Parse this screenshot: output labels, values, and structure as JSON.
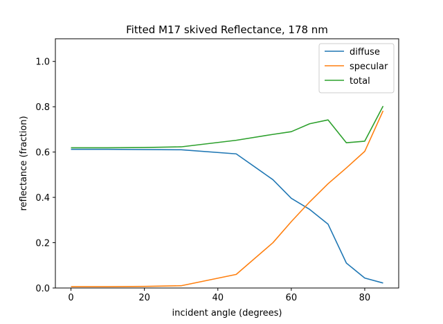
{
  "chart_data": {
    "type": "line",
    "title": "Fitted M17 skived Reflectance, 178 nm",
    "xlabel": "incident angle (degrees)",
    "ylabel": "reflectance (fraction)",
    "xlim": [
      -4.25,
      89.25
    ],
    "ylim": [
      0,
      1.1
    ],
    "xticks": [
      0,
      20,
      40,
      60,
      80
    ],
    "yticks": [
      0.0,
      0.2,
      0.4,
      0.6,
      0.8,
      1.0
    ],
    "xtick_labels": [
      "0",
      "20",
      "40",
      "60",
      "80"
    ],
    "ytick_labels": [
      "0.0",
      "0.2",
      "0.4",
      "0.6",
      "0.8",
      "1.0"
    ],
    "grid": false,
    "legend_position": "top-right",
    "x": [
      0,
      10,
      20,
      30,
      45,
      55,
      60,
      65,
      70,
      75,
      80,
      85
    ],
    "series": [
      {
        "name": "diffuse",
        "color": "#1f77b4",
        "values": [
          0.612,
          0.612,
          0.611,
          0.61,
          0.592,
          0.478,
          0.396,
          0.347,
          0.282,
          0.11,
          0.044,
          0.022
        ]
      },
      {
        "name": "specular",
        "color": "#ff7f0e",
        "values": [
          0.006,
          0.006,
          0.007,
          0.01,
          0.06,
          0.2,
          0.293,
          0.38,
          0.46,
          0.53,
          0.603,
          0.782
        ]
      },
      {
        "name": "total",
        "color": "#2ca02c",
        "values": [
          0.619,
          0.619,
          0.62,
          0.623,
          0.652,
          0.678,
          0.69,
          0.725,
          0.742,
          0.641,
          0.648,
          0.803
        ]
      }
    ]
  }
}
